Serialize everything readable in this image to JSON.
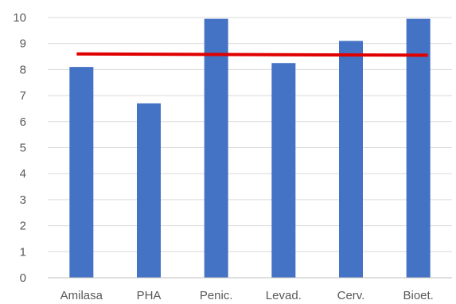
{
  "chart_data": {
    "type": "bar",
    "categories": [
      "Amilasa",
      "PHA",
      "Penic.",
      "Levad.",
      "Cerv.",
      "Bioet."
    ],
    "values": [
      8.1,
      6.7,
      9.95,
      8.25,
      9.1,
      9.95
    ],
    "reference_line": {
      "start": 8.6,
      "end": 8.55,
      "color": "#e00000"
    },
    "title": "",
    "xlabel": "",
    "ylabel": "",
    "ylim": [
      0,
      10
    ],
    "yticks": [
      "0",
      "1",
      "2",
      "3",
      "4",
      "5",
      "6",
      "7",
      "8",
      "9",
      "10"
    ],
    "grid": true,
    "legend": "none",
    "bar_color": "#4472c4"
  }
}
